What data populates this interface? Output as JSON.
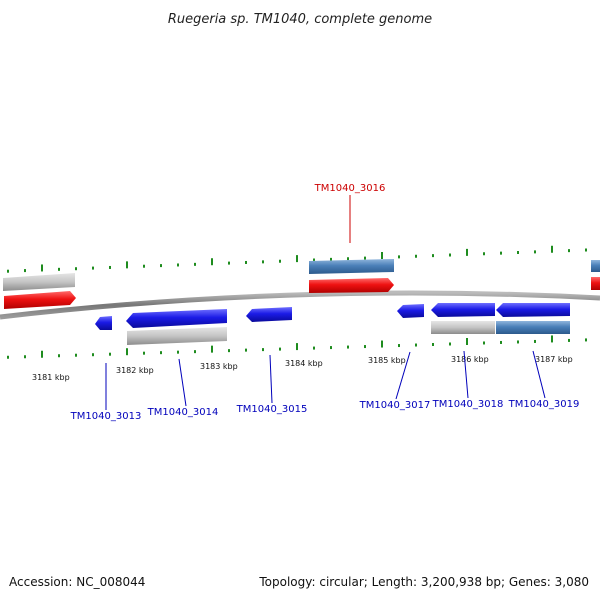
{
  "title": "Ruegeria sp. TM1040, complete genome",
  "colors": {
    "forward_cds": "#ee1111",
    "reverse_cds": "#1b1be6",
    "selected_cds": "#4a7fb8",
    "gene_bar": "#bdbdbd",
    "backbone": "#888888",
    "tick": "#1e8c1e",
    "label_reverse": "#0000bb",
    "label_forward": "#cc0000"
  },
  "kbp_ticks": [
    "3181 kbp",
    "3182 kbp",
    "3183 kbp",
    "3184 kbp",
    "3185 kbp",
    "3186 kbp",
    "3187 kbp"
  ],
  "genes": [
    {
      "id": "TM1040_3013",
      "strand": "reverse",
      "icon": "cds-arrow-left"
    },
    {
      "id": "TM1040_3014",
      "strand": "reverse",
      "icon": "cds-arrow-left"
    },
    {
      "id": "TM1040_3015",
      "strand": "reverse",
      "icon": "cds-arrow-left"
    },
    {
      "id": "TM1040_3016",
      "strand": "forward",
      "icon": "cds-arrow-right"
    },
    {
      "id": "TM1040_3017",
      "strand": "reverse",
      "icon": "cds-arrow-left"
    },
    {
      "id": "TM1040_3018",
      "strand": "reverse",
      "icon": "cds-arrow-left"
    },
    {
      "id": "TM1040_3019",
      "strand": "reverse",
      "icon": "cds-arrow-left"
    }
  ],
  "footer": {
    "accession": "Accession: NC_008044",
    "summary": "Topology: circular; Length: 3,200,938 bp; Genes: 3,080"
  }
}
